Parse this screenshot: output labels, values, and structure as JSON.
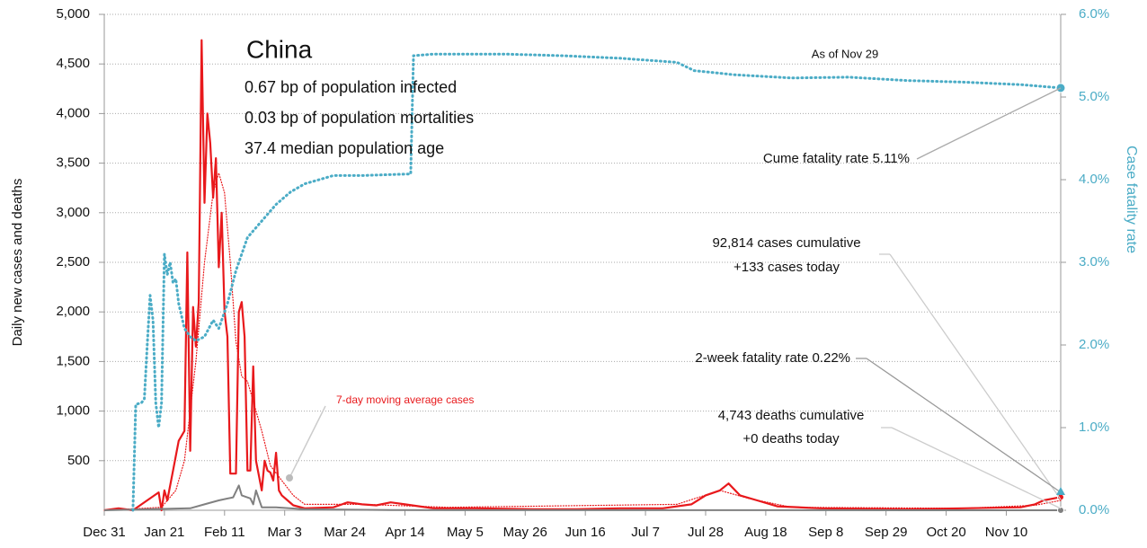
{
  "chart_data": {
    "type": "line",
    "y_label": "Daily new cases and deaths",
    "y2_label": "Case fatality rate",
    "xlim": [
      0,
      334
    ],
    "xticks": [
      {
        "value": 0,
        "label": "Dec 31"
      },
      {
        "value": 21,
        "label": "Jan 21"
      },
      {
        "value": 42,
        "label": "Feb 11"
      },
      {
        "value": 63,
        "label": "Mar 3"
      },
      {
        "value": 84,
        "label": "Mar 24"
      },
      {
        "value": 105,
        "label": "Apr 14"
      },
      {
        "value": 126,
        "label": "May 5"
      },
      {
        "value": 147,
        "label": "May 26"
      },
      {
        "value": 168,
        "label": "Jun 16"
      },
      {
        "value": 189,
        "label": "Jul 7"
      },
      {
        "value": 210,
        "label": "Jul 28"
      },
      {
        "value": 231,
        "label": "Aug 18"
      },
      {
        "value": 252,
        "label": "Sep 8"
      },
      {
        "value": 273,
        "label": "Sep 29"
      },
      {
        "value": 294,
        "label": "Oct 20"
      },
      {
        "value": 315,
        "label": "Nov 10"
      }
    ],
    "ylim": [
      0,
      5000
    ],
    "yticks": [
      {
        "value": 500,
        "label": "500"
      },
      {
        "value": 1000,
        "label": "1,000"
      },
      {
        "value": 1500,
        "label": "1,500"
      },
      {
        "value": 2000,
        "label": "2,000"
      },
      {
        "value": 2500,
        "label": "2,500"
      },
      {
        "value": 3000,
        "label": "3,000"
      },
      {
        "value": 3500,
        "label": "3,500"
      },
      {
        "value": 4000,
        "label": "4,000"
      },
      {
        "value": 4500,
        "label": "4,500"
      },
      {
        "value": 5000,
        "label": "5,000"
      }
    ],
    "y2lim": [
      0,
      6
    ],
    "y2ticks": [
      {
        "value": 0,
        "label": "0.0%"
      },
      {
        "value": 1,
        "label": "1.0%"
      },
      {
        "value": 2,
        "label": "2.0%"
      },
      {
        "value": 3,
        "label": "3.0%"
      },
      {
        "value": 4,
        "label": "4.0%"
      },
      {
        "value": 5,
        "label": "5.0%"
      },
      {
        "value": 6,
        "label": "6.0%"
      }
    ],
    "grid": true,
    "series": [
      {
        "color": "#e8191c",
        "dash": "solid",
        "width": 2.2,
        "x": [
          0,
          5,
          10,
          19,
          20,
          21,
          22,
          24,
          26,
          28,
          29,
          30,
          31,
          32,
          33,
          34,
          35,
          36,
          37,
          38,
          39,
          40,
          41,
          42,
          43,
          44,
          46,
          47,
          48,
          49,
          50,
          51,
          52,
          53,
          55,
          56,
          57,
          58,
          59,
          60,
          61,
          62,
          64,
          66,
          70,
          80,
          85,
          90,
          95,
          100,
          105,
          110,
          115,
          130,
          150,
          165,
          180,
          195,
          205,
          210,
          215,
          218,
          222,
          228,
          235,
          250,
          280,
          300,
          320,
          325,
          328,
          334
        ],
        "values": [
          0,
          20,
          0,
          180,
          0,
          200,
          100,
          400,
          700,
          800,
          2600,
          600,
          2050,
          1650,
          2100,
          4740,
          3100,
          4000,
          3700,
          3150,
          3550,
          2450,
          3000,
          2000,
          1750,
          370,
          370,
          2000,
          2100,
          1750,
          400,
          400,
          1450,
          500,
          200,
          500,
          400,
          380,
          300,
          580,
          200,
          150,
          100,
          50,
          20,
          30,
          80,
          60,
          50,
          80,
          60,
          40,
          20,
          20,
          10,
          10,
          20,
          20,
          60,
          150,
          200,
          270,
          150,
          100,
          40,
          20,
          10,
          20,
          30,
          60,
          100,
          133
        ]
      },
      {
        "name": "7-day moving average cases",
        "color": "#e8191c",
        "dash": "dot",
        "width": 1.2,
        "x": [
          0,
          20,
          25,
          28,
          32,
          35,
          38,
          40,
          42,
          44,
          46,
          48,
          50,
          52,
          55,
          58,
          62,
          66,
          70,
          90,
          120,
          200,
          215,
          225,
          240,
          300,
          325,
          334
        ],
        "values": [
          0,
          30,
          200,
          500,
          1500,
          2500,
          3200,
          3400,
          3200,
          2500,
          1700,
          1350,
          1300,
          1100,
          800,
          450,
          300,
          150,
          60,
          60,
          30,
          60,
          200,
          120,
          30,
          20,
          50,
          100
        ]
      },
      {
        "color": "#808080",
        "dash": "solid",
        "width": 2,
        "x": [
          0,
          30,
          35,
          40,
          45,
          47,
          48,
          51,
          52,
          53,
          55,
          60,
          70,
          100,
          334
        ],
        "values": [
          0,
          20,
          60,
          100,
          130,
          250,
          150,
          120,
          60,
          200,
          30,
          30,
          10,
          2,
          0
        ]
      },
      {
        "color": "#4bacc6",
        "dash": "dot",
        "width": 3,
        "axis": "y2",
        "x": [
          10,
          11,
          13,
          14,
          15,
          16,
          17,
          18,
          19,
          20,
          21,
          22,
          23,
          24,
          25,
          26,
          28,
          30,
          32,
          35,
          38,
          40,
          43,
          46,
          50,
          55,
          60,
          65,
          70,
          80,
          90,
          107,
          108,
          115,
          140,
          160,
          180,
          200,
          206,
          220,
          240,
          260,
          280,
          300,
          320,
          334
        ],
        "values": [
          0,
          1.28,
          1.3,
          1.35,
          2.0,
          2.6,
          2.3,
          1.3,
          1.0,
          1.3,
          3.1,
          2.85,
          3.0,
          2.75,
          2.8,
          2.5,
          2.2,
          2.1,
          2.05,
          2.1,
          2.3,
          2.2,
          2.5,
          2.9,
          3.3,
          3.5,
          3.7,
          3.85,
          3.95,
          4.05,
          4.05,
          4.07,
          5.5,
          5.52,
          5.52,
          5.5,
          5.47,
          5.42,
          5.32,
          5.27,
          5.23,
          5.24,
          5.2,
          5.18,
          5.15,
          5.11
        ]
      }
    ],
    "annotations": [
      {
        "text": "China"
      },
      {
        "text": "0.67 bp of population infected"
      },
      {
        "text": "0.03 bp of population mortalities"
      },
      {
        "text": "37.4 median population age"
      },
      {
        "text": "As of Nov 29"
      },
      {
        "text": "Cume fatality rate 5.11%"
      },
      {
        "text": "92,814 cases cumulative"
      },
      {
        "text": "+133 cases today"
      },
      {
        "text": "2-week fatality rate 0.22%"
      },
      {
        "text": "4,743 deaths cumulative"
      },
      {
        "text": "+0 deaths today"
      }
    ]
  }
}
